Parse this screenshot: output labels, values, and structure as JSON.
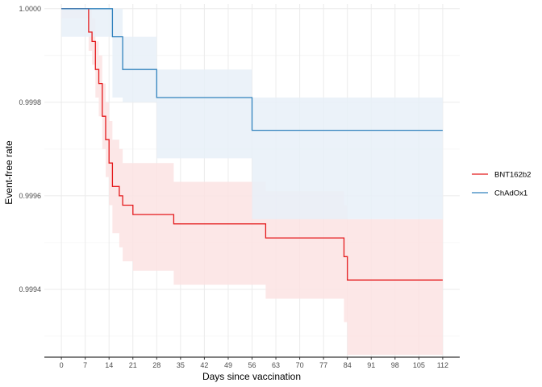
{
  "chart_data": {
    "type": "line",
    "subtype": "step-with-confidence-band",
    "xlabel": "Days since vaccination",
    "ylabel": "Event-free rate",
    "xlim": [
      -5,
      117
    ],
    "ylim": [
      0.999255,
      1.00001
    ],
    "x_ticks": [
      0,
      7,
      14,
      21,
      28,
      35,
      42,
      49,
      56,
      63,
      70,
      77,
      84,
      91,
      98,
      105,
      112
    ],
    "x_tick_labels": [
      "0",
      "7",
      "14",
      "21",
      "28",
      "35",
      "42",
      "49",
      "56",
      "63",
      "70",
      "77",
      "84",
      "91",
      "98",
      "105",
      "112"
    ],
    "y_ticks": [
      0.9994,
      0.9996,
      0.9998,
      1.0
    ],
    "y_tick_labels": [
      "0.9994",
      "0.9996",
      "0.9998",
      "1.0000"
    ],
    "grid": true,
    "legend_position": "right",
    "series": [
      {
        "name": "BNT162b2",
        "color": "#e41a1c",
        "band_color": "#fbe3e3",
        "x": [
          0,
          8,
          9,
          10,
          11,
          12,
          13,
          14,
          15,
          17,
          18,
          21,
          33,
          60,
          83,
          84,
          112
        ],
        "y": [
          1.0,
          0.99995,
          0.99993,
          0.99987,
          0.99984,
          0.99977,
          0.99972,
          0.99967,
          0.99962,
          0.9996,
          0.99958,
          0.99956,
          0.99954,
          0.99951,
          0.99947,
          0.99942,
          0.99942
        ],
        "lower": [
          0.99998,
          0.99991,
          0.99988,
          0.99981,
          0.99977,
          0.9997,
          0.99964,
          0.99958,
          0.99952,
          0.99949,
          0.99946,
          0.99944,
          0.99941,
          0.99938,
          0.99933,
          0.99926,
          0.99926
        ],
        "upper": [
          1.0,
          1.0,
          0.99998,
          0.99993,
          0.9999,
          0.99984,
          0.9998,
          0.99976,
          0.99972,
          0.9997,
          0.99967,
          0.99967,
          0.99963,
          0.99961,
          0.99958,
          0.99955,
          0.99955
        ]
      },
      {
        "name": "ChAdOx1",
        "color": "#3182bd",
        "band_color": "#e8f0f8",
        "x": [
          0,
          15,
          18,
          28,
          56,
          112
        ],
        "y": [
          1.0,
          0.99994,
          0.99987,
          0.99981,
          0.99974,
          0.99974
        ],
        "lower": [
          0.99994,
          0.99981,
          0.9998,
          0.99968,
          0.99955,
          0.99955
        ],
        "upper": [
          1.0,
          1.0,
          0.99994,
          0.99987,
          0.99981,
          0.99981
        ]
      }
    ]
  }
}
